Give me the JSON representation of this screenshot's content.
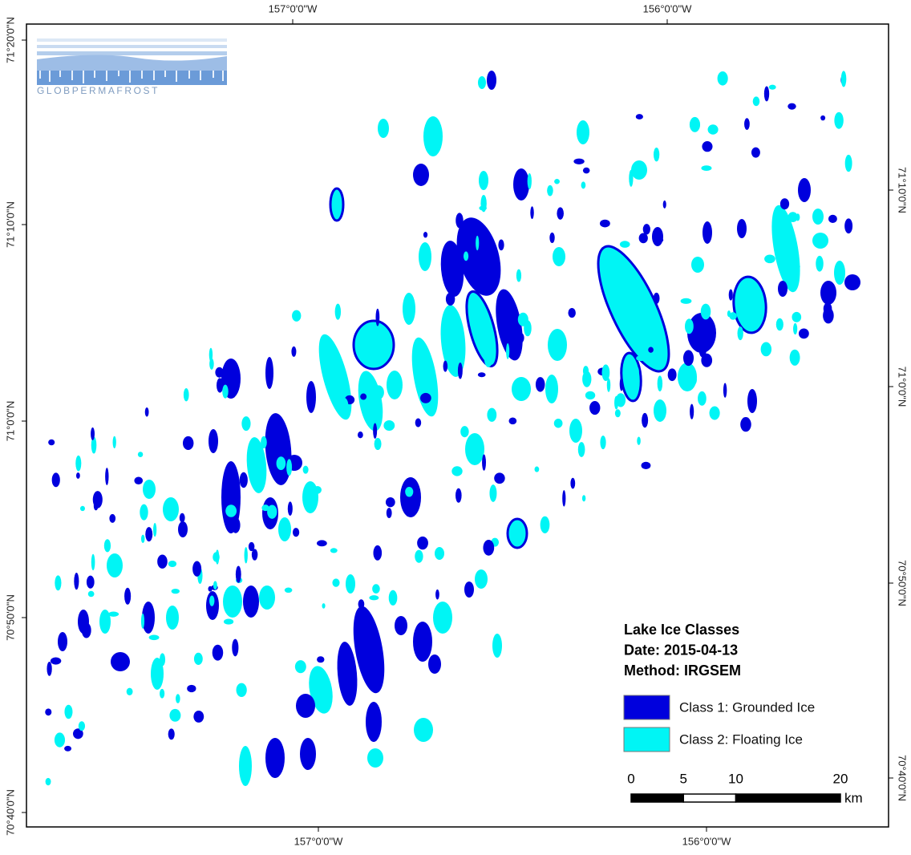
{
  "map": {
    "graticule": {
      "top": [
        "157°0'0\"W",
        "156°0'0\"W"
      ],
      "bottom": [
        "157°0'0\"W",
        "156°0'0\"W"
      ],
      "left": [
        "71°20'0\"N",
        "71°10'0\"N",
        "71°0'0\"N",
        "70°50'0\"N",
        "70°40'0\"N"
      ],
      "right": [
        "71°10'0\"N",
        "71°0'0\"N",
        "70°50'0\"N",
        "70°40'0\"N"
      ]
    },
    "logo": "GLOBPERMAFROST",
    "legend": {
      "title": [
        "Lake Ice Classes",
        "Date: 2015-04-13",
        "Method: IRGSEM"
      ],
      "classes": [
        {
          "label": "Class 1: Grounded Ice",
          "color": "#0000dd"
        },
        {
          "label": "Class 2: Floating Ice",
          "color": "#00f5f5"
        }
      ]
    },
    "scale": {
      "ticks": [
        0,
        5,
        10,
        20
      ],
      "unit": "km"
    }
  }
}
